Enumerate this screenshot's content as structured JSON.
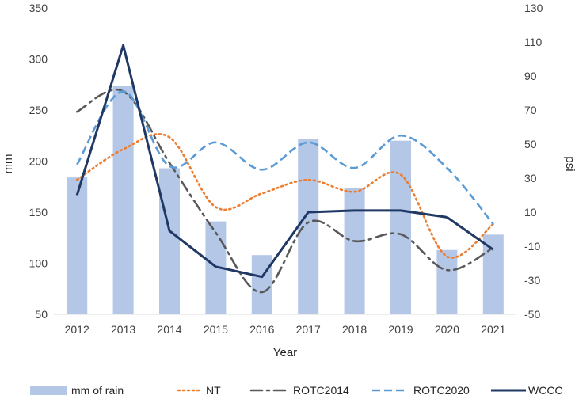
{
  "chart_data": {
    "type": "bar+line",
    "x": [
      "2012",
      "2013",
      "2014",
      "2015",
      "2016",
      "2017",
      "2018",
      "2019",
      "2020",
      "2021"
    ],
    "xlabel": "Year",
    "ylabel_left": "mm",
    "ylabel_right": "psi",
    "ylim_left": [
      50,
      350
    ],
    "ylim_right": [
      -50,
      130
    ],
    "yticks_left": [
      "50",
      "100",
      "150",
      "200",
      "250",
      "300",
      "350"
    ],
    "yticks_right": [
      "-50",
      "-30",
      "-10",
      "10",
      "30",
      "50",
      "70",
      "90",
      "110",
      "130"
    ],
    "bars": {
      "name": "mm of rain",
      "axis": "left",
      "color": "#b4c7e7",
      "values": [
        184,
        274,
        193,
        141,
        108,
        222,
        174,
        220,
        113,
        128
      ]
    },
    "series": [
      {
        "name": "NT",
        "axis": "right",
        "style": "dotted",
        "color": "#ed7d31",
        "values": [
          29,
          47,
          54,
          13,
          21,
          29,
          22,
          32,
          -16,
          3
        ]
      },
      {
        "name": "ROTC2014",
        "axis": "right",
        "style": "dashdot",
        "color": "#595959",
        "values": [
          69,
          81,
          39,
          -2,
          -37,
          4,
          -7,
          -3,
          -24,
          -11
        ]
      },
      {
        "name": "ROTC2020",
        "axis": "right",
        "style": "dashed",
        "color": "#5b9bd5",
        "values": [
          38,
          81,
          37,
          51,
          35,
          51,
          36,
          55,
          36,
          3
        ]
      },
      {
        "name": "WCCC",
        "axis": "right",
        "style": "solid",
        "color": "#203864",
        "values": [
          20,
          108,
          -1,
          -22,
          -28,
          10,
          11,
          11,
          7,
          -12
        ]
      }
    ],
    "legend": [
      "mm of rain",
      "NT",
      "ROTC2014",
      "ROTC2020",
      "WCCC"
    ],
    "legend_position": "bottom",
    "grid": false
  }
}
